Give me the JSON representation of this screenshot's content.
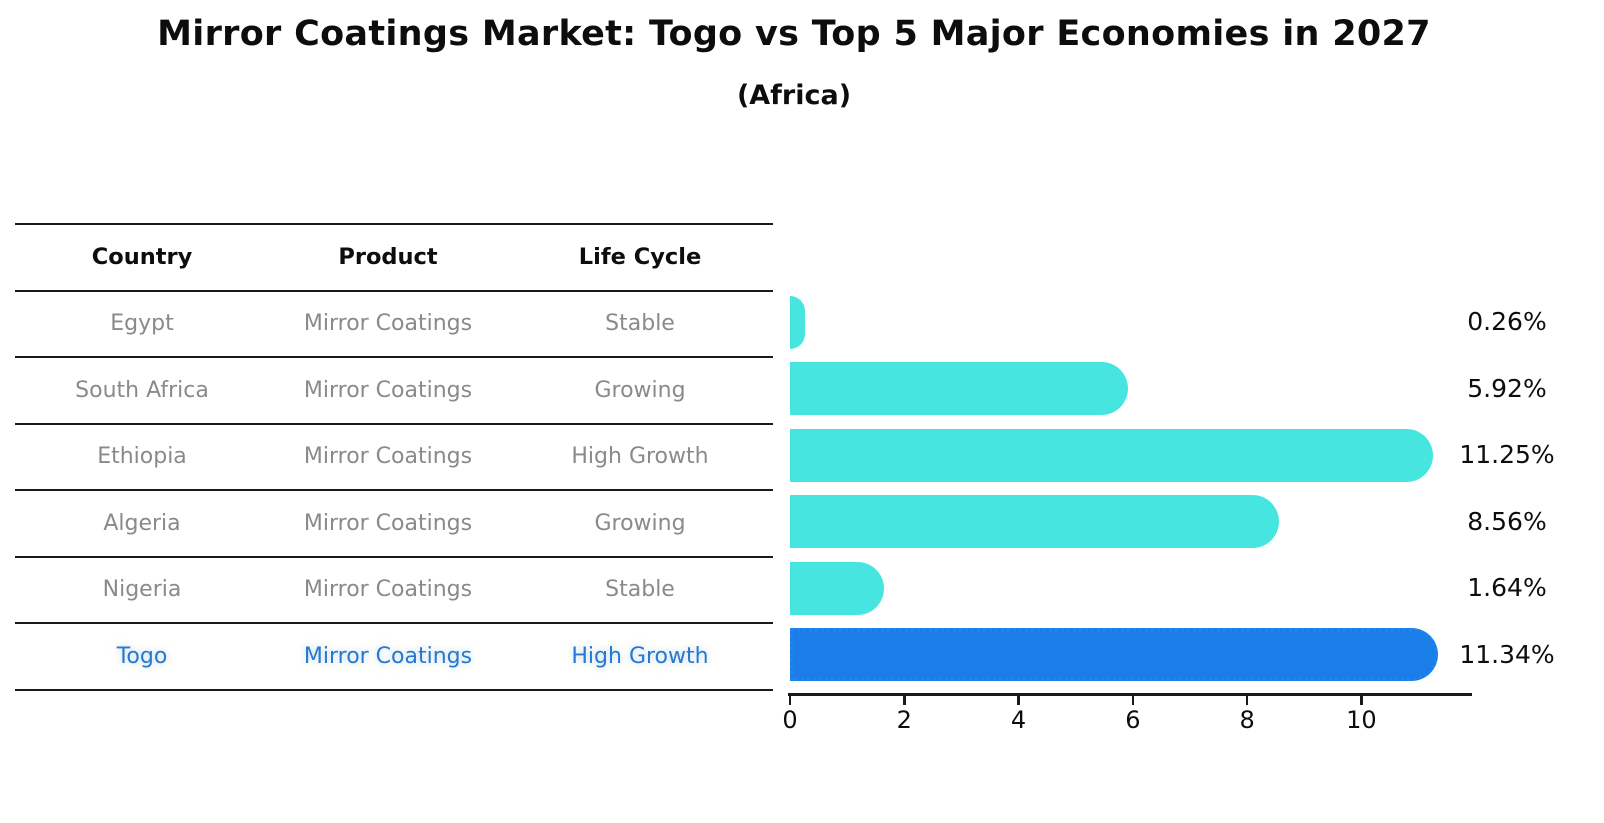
{
  "title": "Mirror Coatings Market: Togo vs Top 5 Major Economies in 2027",
  "subtitle": "(Africa)",
  "table": {
    "headers": [
      "Country",
      "Product",
      "Life Cycle"
    ],
    "rows": [
      [
        "Egypt",
        "Mirror Coatings",
        "Stable"
      ],
      [
        "South Africa",
        "Mirror Coatings",
        "Growing"
      ],
      [
        "Ethiopia",
        "Mirror Coatings",
        "High Growth"
      ],
      [
        "Algeria",
        "Mirror Coatings",
        "Growing"
      ],
      [
        "Nigeria",
        "Mirror Coatings",
        "Stable"
      ],
      [
        "Togo",
        "Mirror Coatings",
        "High Growth"
      ]
    ],
    "highlight_row": 5
  },
  "chart_data": {
    "type": "bar",
    "orientation": "horizontal",
    "categories": [
      "Egypt",
      "South Africa",
      "Ethiopia",
      "Algeria",
      "Nigeria",
      "Togo"
    ],
    "values": [
      0.26,
      5.92,
      11.25,
      8.56,
      1.64,
      11.34
    ],
    "value_labels": [
      "0.26%",
      "5.92%",
      "11.25%",
      "8.56%",
      "1.64%",
      "11.34%"
    ],
    "x_tick_labels": [
      "0",
      "2",
      "4",
      "6",
      "8",
      "10"
    ],
    "x_tick_values": [
      0,
      2,
      4,
      6,
      8,
      10
    ],
    "xlim": [
      0,
      11.9
    ],
    "grid": false,
    "legend": false,
    "title": "Mirror Coatings Market: Togo vs Top 5 Major Economies in 2027",
    "xlabel": "",
    "ylabel": "",
    "bar_color": "#46E5E0",
    "highlight_bar_color": "#1B7DE8",
    "highlight_index": 5
  },
  "colors": {
    "bar": "#46E5E0",
    "highlight_bar": "#1B7DE8",
    "highlight_text": "#2878CD",
    "cell_text": "#8A8A8A",
    "header_text": "#0D0D0D",
    "axis_line": "#1A1A1A"
  }
}
